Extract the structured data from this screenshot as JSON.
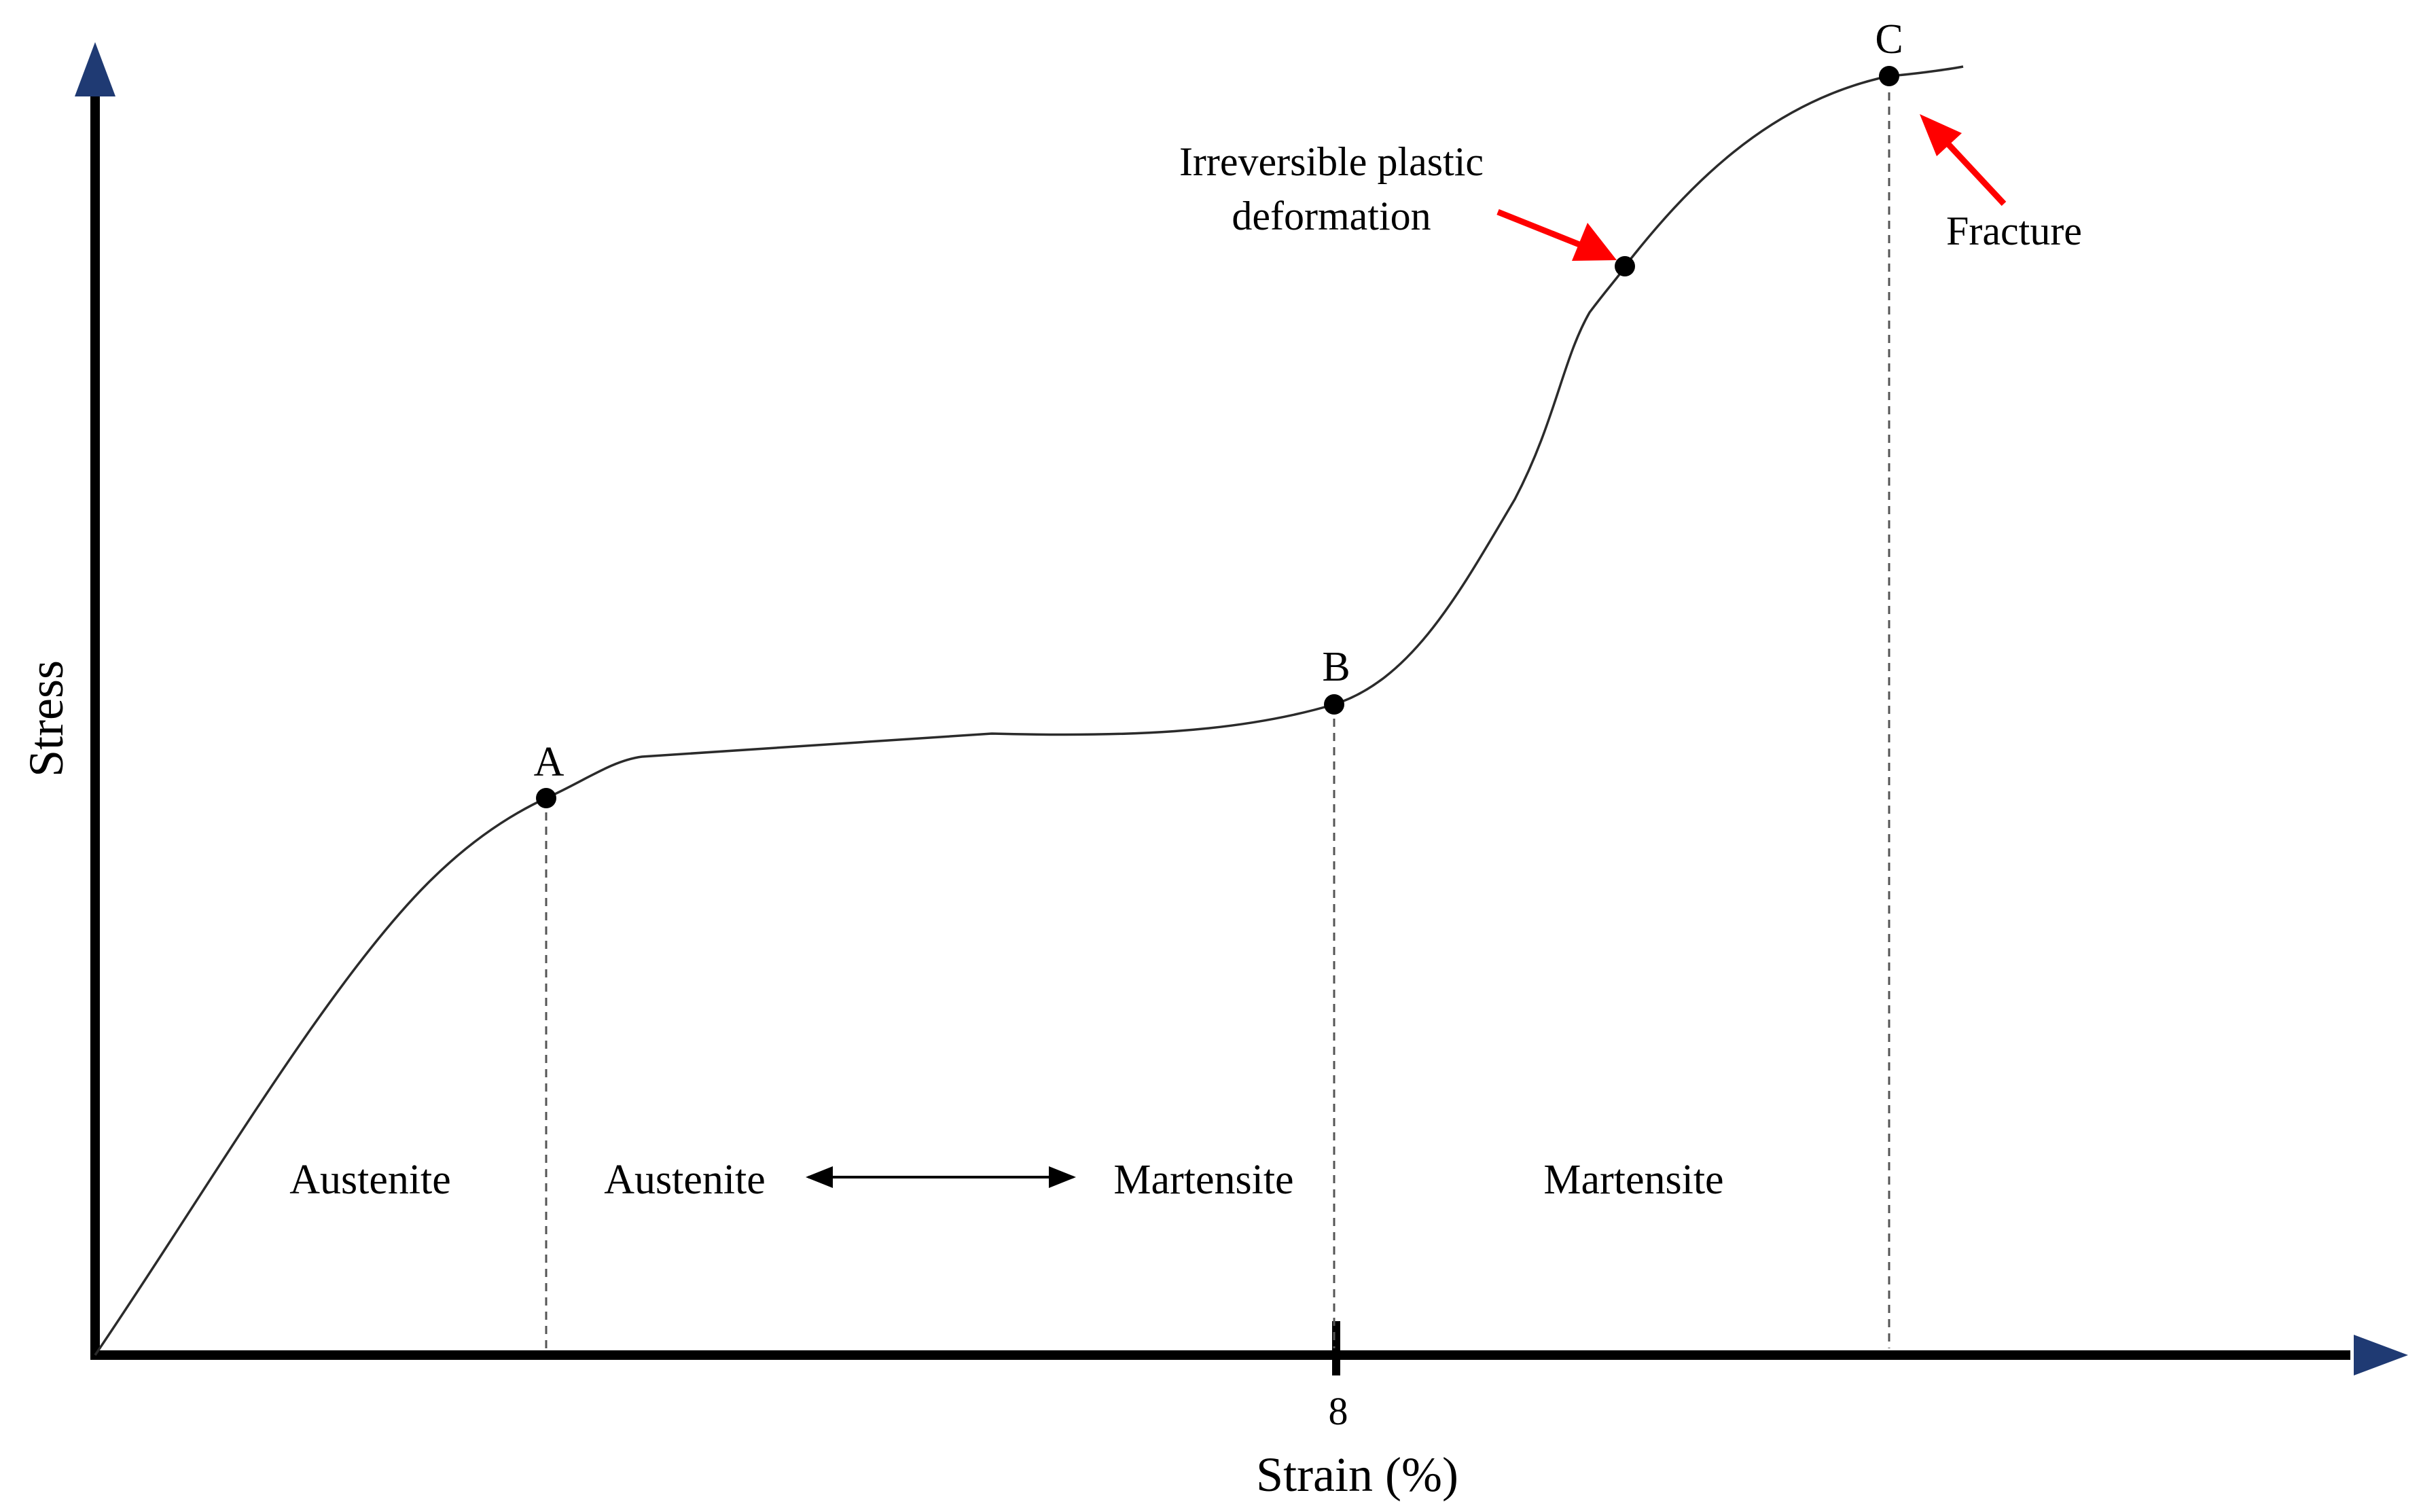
{
  "diagram": {
    "x_axis": {
      "title": "Strain (%)",
      "tick_label": "8"
    },
    "y_axis": {
      "title": "Stress"
    },
    "points": {
      "A": "A",
      "B": "B",
      "C": "C"
    },
    "regions": {
      "austenite": "Austenite",
      "transition_start": "Austenite",
      "transition_end": "Martensite",
      "martensite": "Martensite"
    },
    "annotations": {
      "plastic_line1": "Irreversible plastic",
      "plastic_line2": "deformation",
      "fracture": "Fracture"
    },
    "colors": {
      "axis": "#000000",
      "axis_arrowhead": "#1f3a73",
      "curve": "#2b2b2b",
      "annotation_arrow": "#ff0000",
      "guide_line": "#555555"
    }
  }
}
